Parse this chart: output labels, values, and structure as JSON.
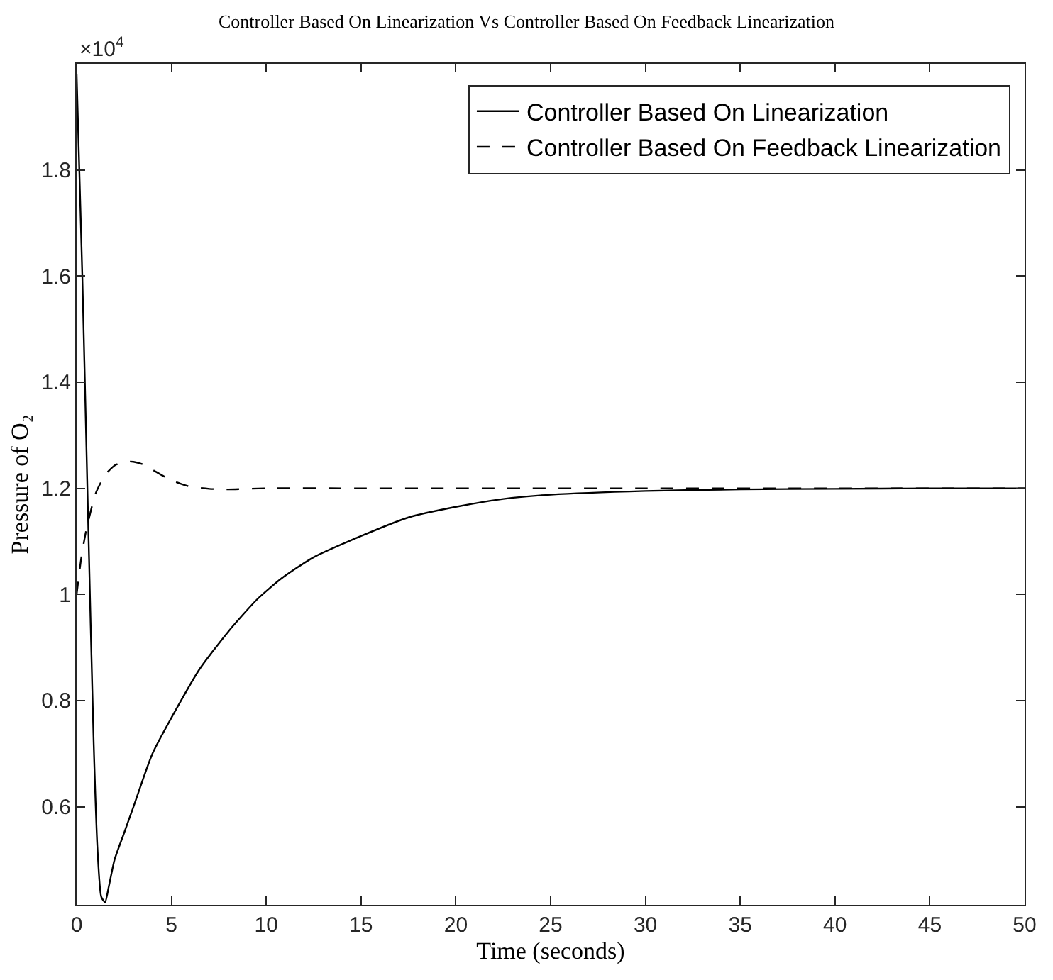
{
  "chart_data": {
    "type": "line",
    "title": "Controller Based On Linearization Vs Controller Based On Feedback Linearization",
    "xlabel": "Time (seconds)",
    "ylabel": "Pressure of O₂",
    "annotations": [
      "×10$^{4}$"
    ],
    "xlim": [
      0,
      50
    ],
    "xticks": [
      0,
      5,
      10,
      15,
      20,
      25,
      30,
      35,
      40,
      45,
      50
    ],
    "ylim": [
      0.415,
      2.0
    ],
    "yticks": [
      0.6,
      0.8,
      1,
      1.2,
      1.4,
      1.6,
      1.8
    ],
    "legend": "top right",
    "marker": "none",
    "series": [
      {
        "name": "Controller Based On Linearization",
        "color": "#000000",
        "line_style": "solid",
        "x": [
          0,
          0.3,
          0.6,
          0.9,
          1.1,
          1.3,
          1.5,
          1.7,
          2.0,
          2.5,
          3.0,
          4.0,
          5.35,
          6.5,
          8.0,
          9.5,
          10.8,
          12.5,
          15,
          17.5,
          20,
          22.5,
          25,
          30,
          35,
          40,
          45,
          50
        ],
        "values": [
          1.98,
          1.6,
          1.15,
          0.72,
          0.52,
          0.43,
          0.42,
          0.45,
          0.5,
          0.55,
          0.6,
          0.7,
          0.79,
          0.86,
          0.93,
          0.99,
          1.03,
          1.07,
          1.11,
          1.145,
          1.165,
          1.18,
          1.188,
          1.195,
          1.198,
          1.199,
          1.2,
          1.2
        ]
      },
      {
        "name": "Controller Based On Feedback Linearization",
        "color": "#000000",
        "line_style": "dashed",
        "x": [
          0,
          0.25,
          0.5,
          1.0,
          1.5,
          2.0,
          2.5,
          3.0,
          3.5,
          4.0,
          5.0,
          6.0,
          7.0,
          8.0,
          10,
          15,
          20,
          30,
          40,
          50
        ],
        "values": [
          1.0,
          1.07,
          1.12,
          1.19,
          1.225,
          1.243,
          1.25,
          1.25,
          1.245,
          1.235,
          1.215,
          1.203,
          1.199,
          1.198,
          1.2,
          1.2,
          1.2,
          1.2,
          1.2,
          1.2
        ]
      }
    ]
  }
}
